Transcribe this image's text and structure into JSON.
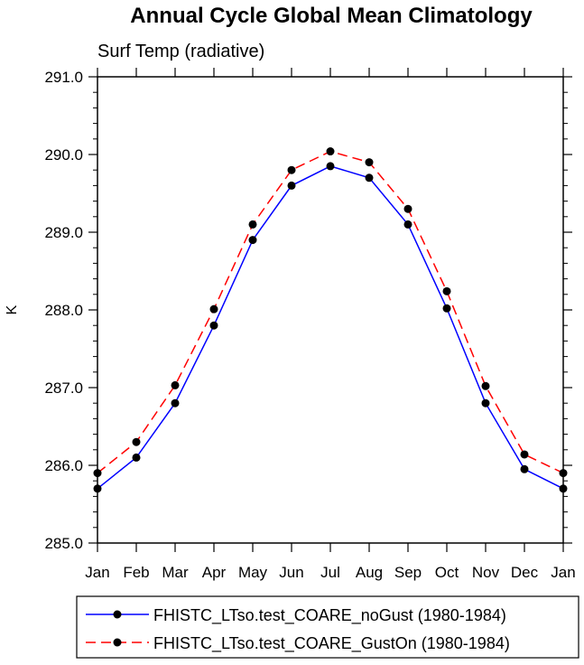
{
  "chart_data": {
    "type": "line",
    "title": "Annual Cycle Global Mean Climatology",
    "subtitle": "Surf Temp (radiative)",
    "xlabel": "",
    "ylabel": "K",
    "categories": [
      "Jan",
      "Feb",
      "Mar",
      "Apr",
      "May",
      "Jun",
      "Jul",
      "Aug",
      "Sep",
      "Oct",
      "Nov",
      "Dec",
      "Jan"
    ],
    "ylim": [
      285.0,
      291.0
    ],
    "yticks": [
      "285.0",
      "286.0",
      "287.0",
      "288.0",
      "289.0",
      "290.0",
      "291.0"
    ],
    "grid": false,
    "legend_position": "bottom",
    "series": [
      {
        "name": "FHISTC_LTso.test_COARE_noGust (1980-1984)",
        "color": "#0000ff",
        "dash": "solid",
        "values": [
          285.7,
          286.1,
          286.8,
          287.8,
          288.9,
          289.6,
          289.85,
          289.7,
          289.1,
          288.02,
          286.8,
          285.95,
          285.7
        ]
      },
      {
        "name": "FHISTC_LTso.test_COARE_GustOn (1980-1984)",
        "color": "#ff0000",
        "dash": "dashed",
        "values": [
          285.9,
          286.3,
          287.03,
          288.01,
          289.1,
          289.8,
          290.04,
          289.9,
          289.3,
          288.24,
          287.02,
          286.14,
          285.9
        ]
      }
    ]
  }
}
